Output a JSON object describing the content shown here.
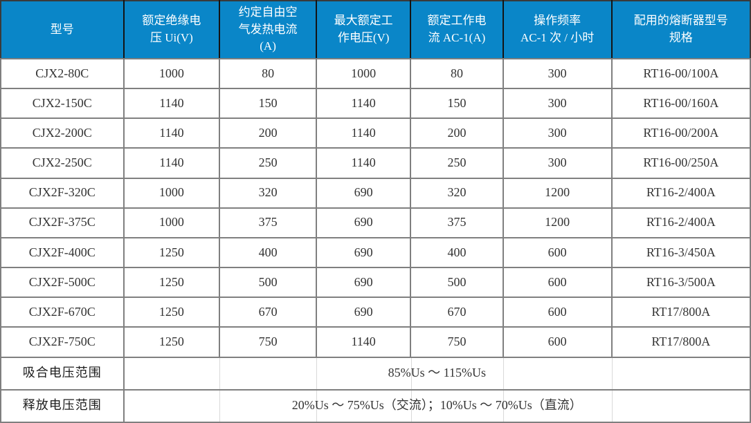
{
  "colors": {
    "header_bg": "#0a86c8",
    "header_text": "#ffffff",
    "body_text": "#333333",
    "grid_line": "#7f7f7f",
    "header_divider": "#141414",
    "outer_border": "#3a3a3a",
    "merged_cell_faint_divider": "#d9d9d9"
  },
  "table": {
    "header": {
      "col1": "型号",
      "col2": "额定绝缘电\n压 Ui(V)",
      "col3": "约定自由空\n气发热电流\n(A)",
      "col4": "最大额定工\n作电压(V)",
      "col5": "额定工作电\n流 AC-1(A)",
      "col6": "操作频率\nAC-1 次 / 小时",
      "col7": "配用的熔断器型号\n规格"
    },
    "rows": [
      {
        "model": "CJX2-80C",
        "ui_v": "1000",
        "ith_a": "80",
        "ue_v": "1000",
        "ie_a": "80",
        "freq": "300",
        "fuse": "RT16-00/100A"
      },
      {
        "model": "CJX2-150C",
        "ui_v": "1140",
        "ith_a": "150",
        "ue_v": "1140",
        "ie_a": "150",
        "freq": "300",
        "fuse": "RT16-00/160A"
      },
      {
        "model": "CJX2-200C",
        "ui_v": "1140",
        "ith_a": "200",
        "ue_v": "1140",
        "ie_a": "200",
        "freq": "300",
        "fuse": "RT16-00/200A"
      },
      {
        "model": "CJX2-250C",
        "ui_v": "1140",
        "ith_a": "250",
        "ue_v": "1140",
        "ie_a": "250",
        "freq": "300",
        "fuse": "RT16-00/250A"
      },
      {
        "model": "CJX2F-320C",
        "ui_v": "1000",
        "ith_a": "320",
        "ue_v": "690",
        "ie_a": "320",
        "freq": "1200",
        "fuse": "RT16-2/400A"
      },
      {
        "model": "CJX2F-375C",
        "ui_v": "1000",
        "ith_a": "375",
        "ue_v": "690",
        "ie_a": "375",
        "freq": "1200",
        "fuse": "RT16-2/400A"
      },
      {
        "model": "CJX2F-400C",
        "ui_v": "1250",
        "ith_a": "400",
        "ue_v": "690",
        "ie_a": "400",
        "freq": "600",
        "fuse": "RT16-3/450A"
      },
      {
        "model": "CJX2F-500C",
        "ui_v": "1250",
        "ith_a": "500",
        "ue_v": "690",
        "ie_a": "500",
        "freq": "600",
        "fuse": "RT16-3/500A"
      },
      {
        "model": "CJX2F-670C",
        "ui_v": "1250",
        "ith_a": "670",
        "ue_v": "690",
        "ie_a": "670",
        "freq": "600",
        "fuse": "RT17/800A"
      },
      {
        "model": "CJX2F-750C",
        "ui_v": "1250",
        "ith_a": "750",
        "ue_v": "1140",
        "ie_a": "750",
        "freq": "600",
        "fuse": "RT17/800A"
      }
    ],
    "footer": [
      {
        "label": "吸合电压范围",
        "value": "85%Us ～ 115%Us"
      },
      {
        "label": "释放电压范围",
        "value": "20%Us ～ 75%Us（交流）；10%Us ～ 70%Us（直流）"
      }
    ]
  }
}
